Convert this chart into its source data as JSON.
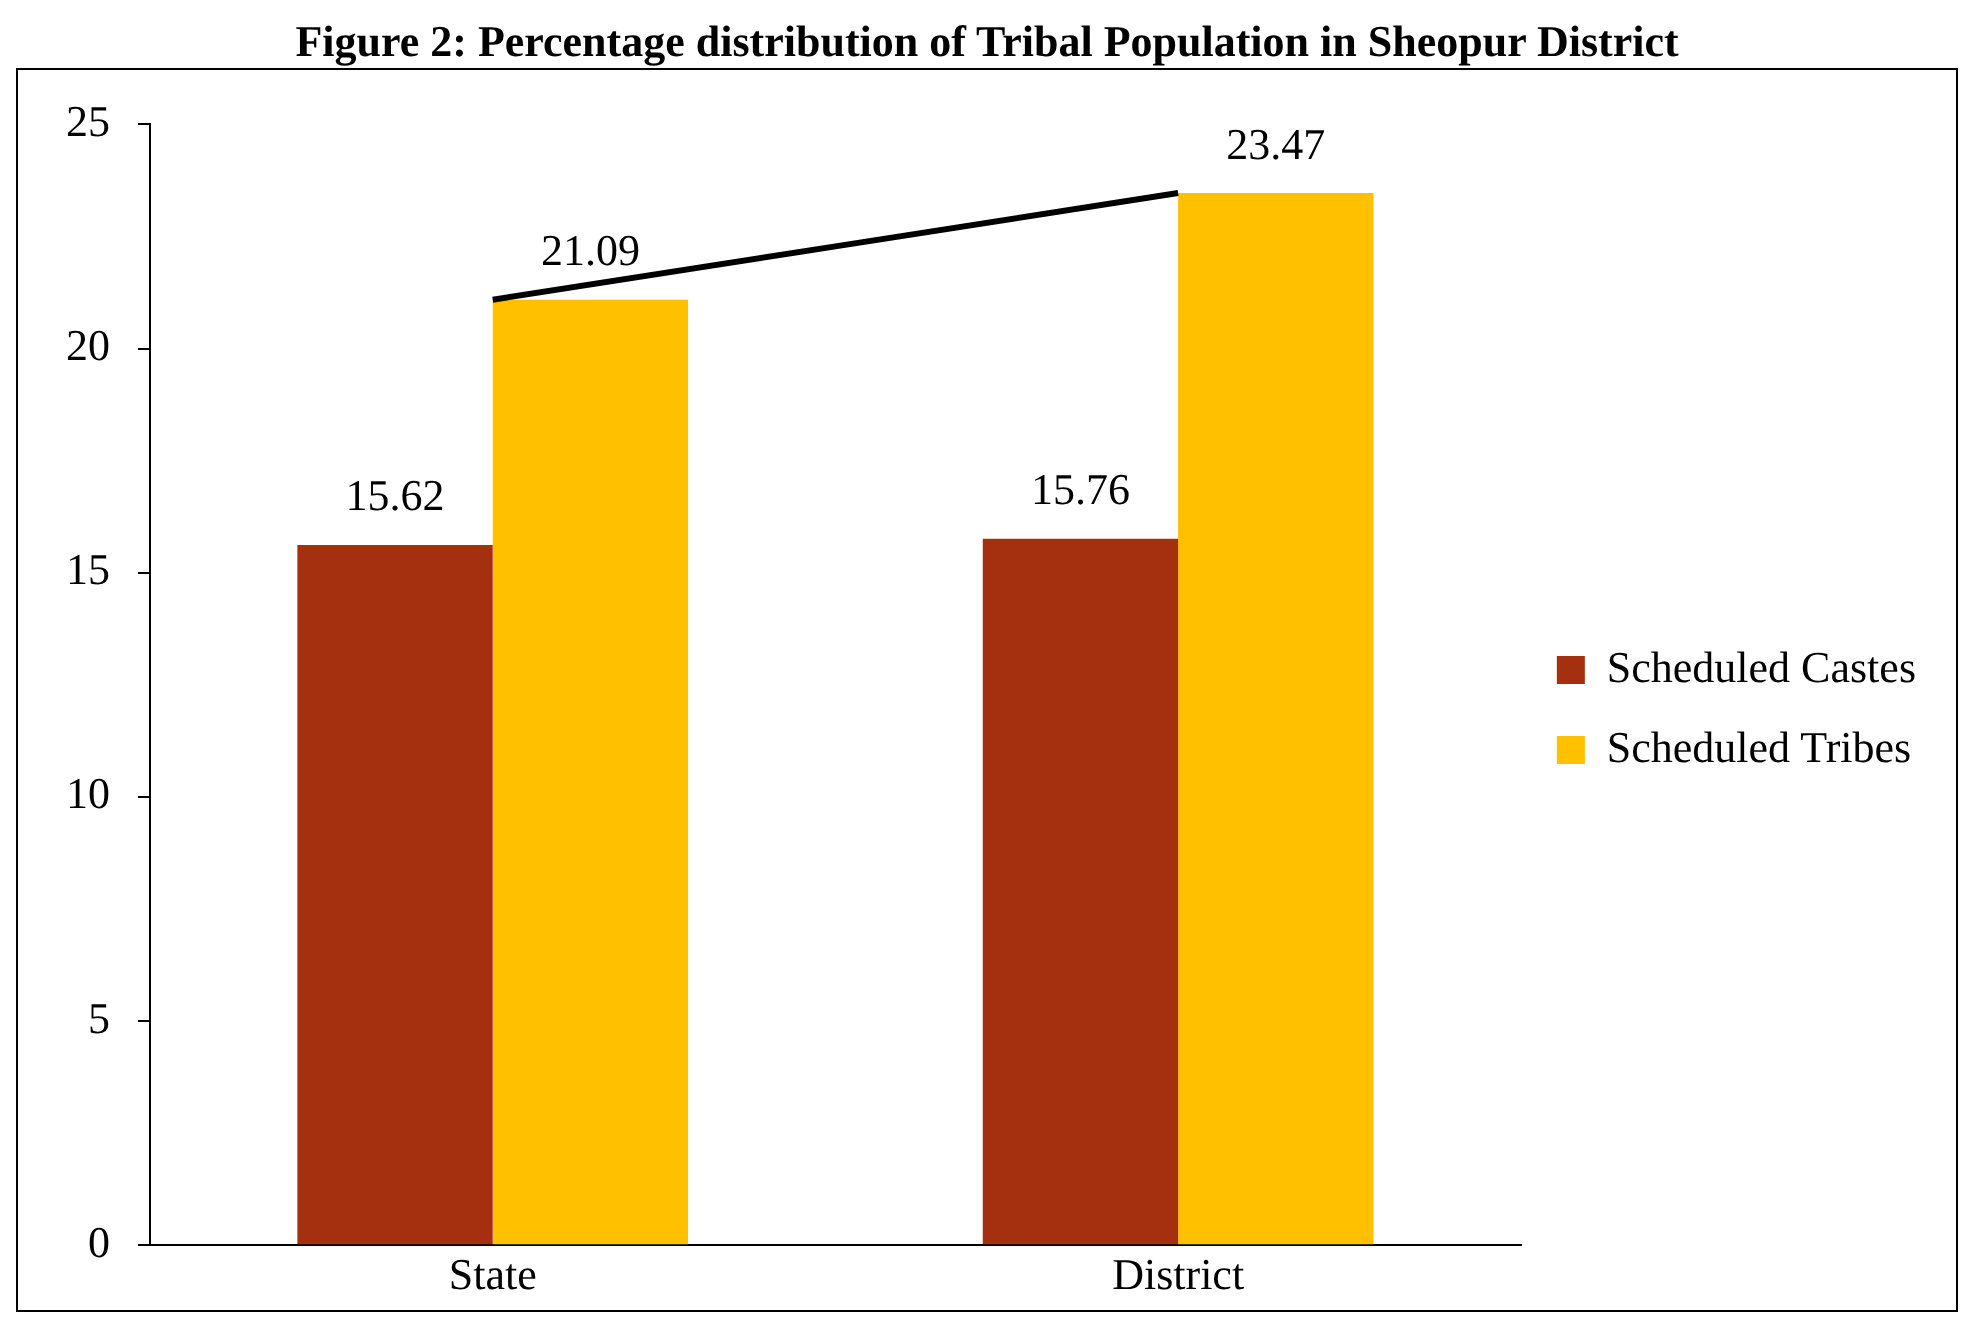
{
  "chart_data": {
    "type": "bar",
    "title": "Figure 2: Percentage distribution of Tribal Population in Sheopur District",
    "categories": [
      "State",
      "District"
    ],
    "series": [
      {
        "name": "Scheduled Castes",
        "color": "#a5300f",
        "values": [
          15.62,
          15.76
        ],
        "value_labels": [
          "15.62",
          "15.76"
        ]
      },
      {
        "name": "Scheduled Tribes",
        "color": "#ffc000",
        "values": [
          21.09,
          23.47
        ],
        "value_labels": [
          "21.09",
          "23.47"
        ]
      },
      {
        "type": "line",
        "color": "#000000",
        "values": [
          21.09,
          23.47
        ]
      }
    ],
    "ylim": [
      0,
      25
    ],
    "yticks": [
      0,
      5,
      10,
      15,
      20,
      25
    ],
    "grid": false,
    "legend": "right",
    "marker": "none",
    "line_style": "solid"
  }
}
